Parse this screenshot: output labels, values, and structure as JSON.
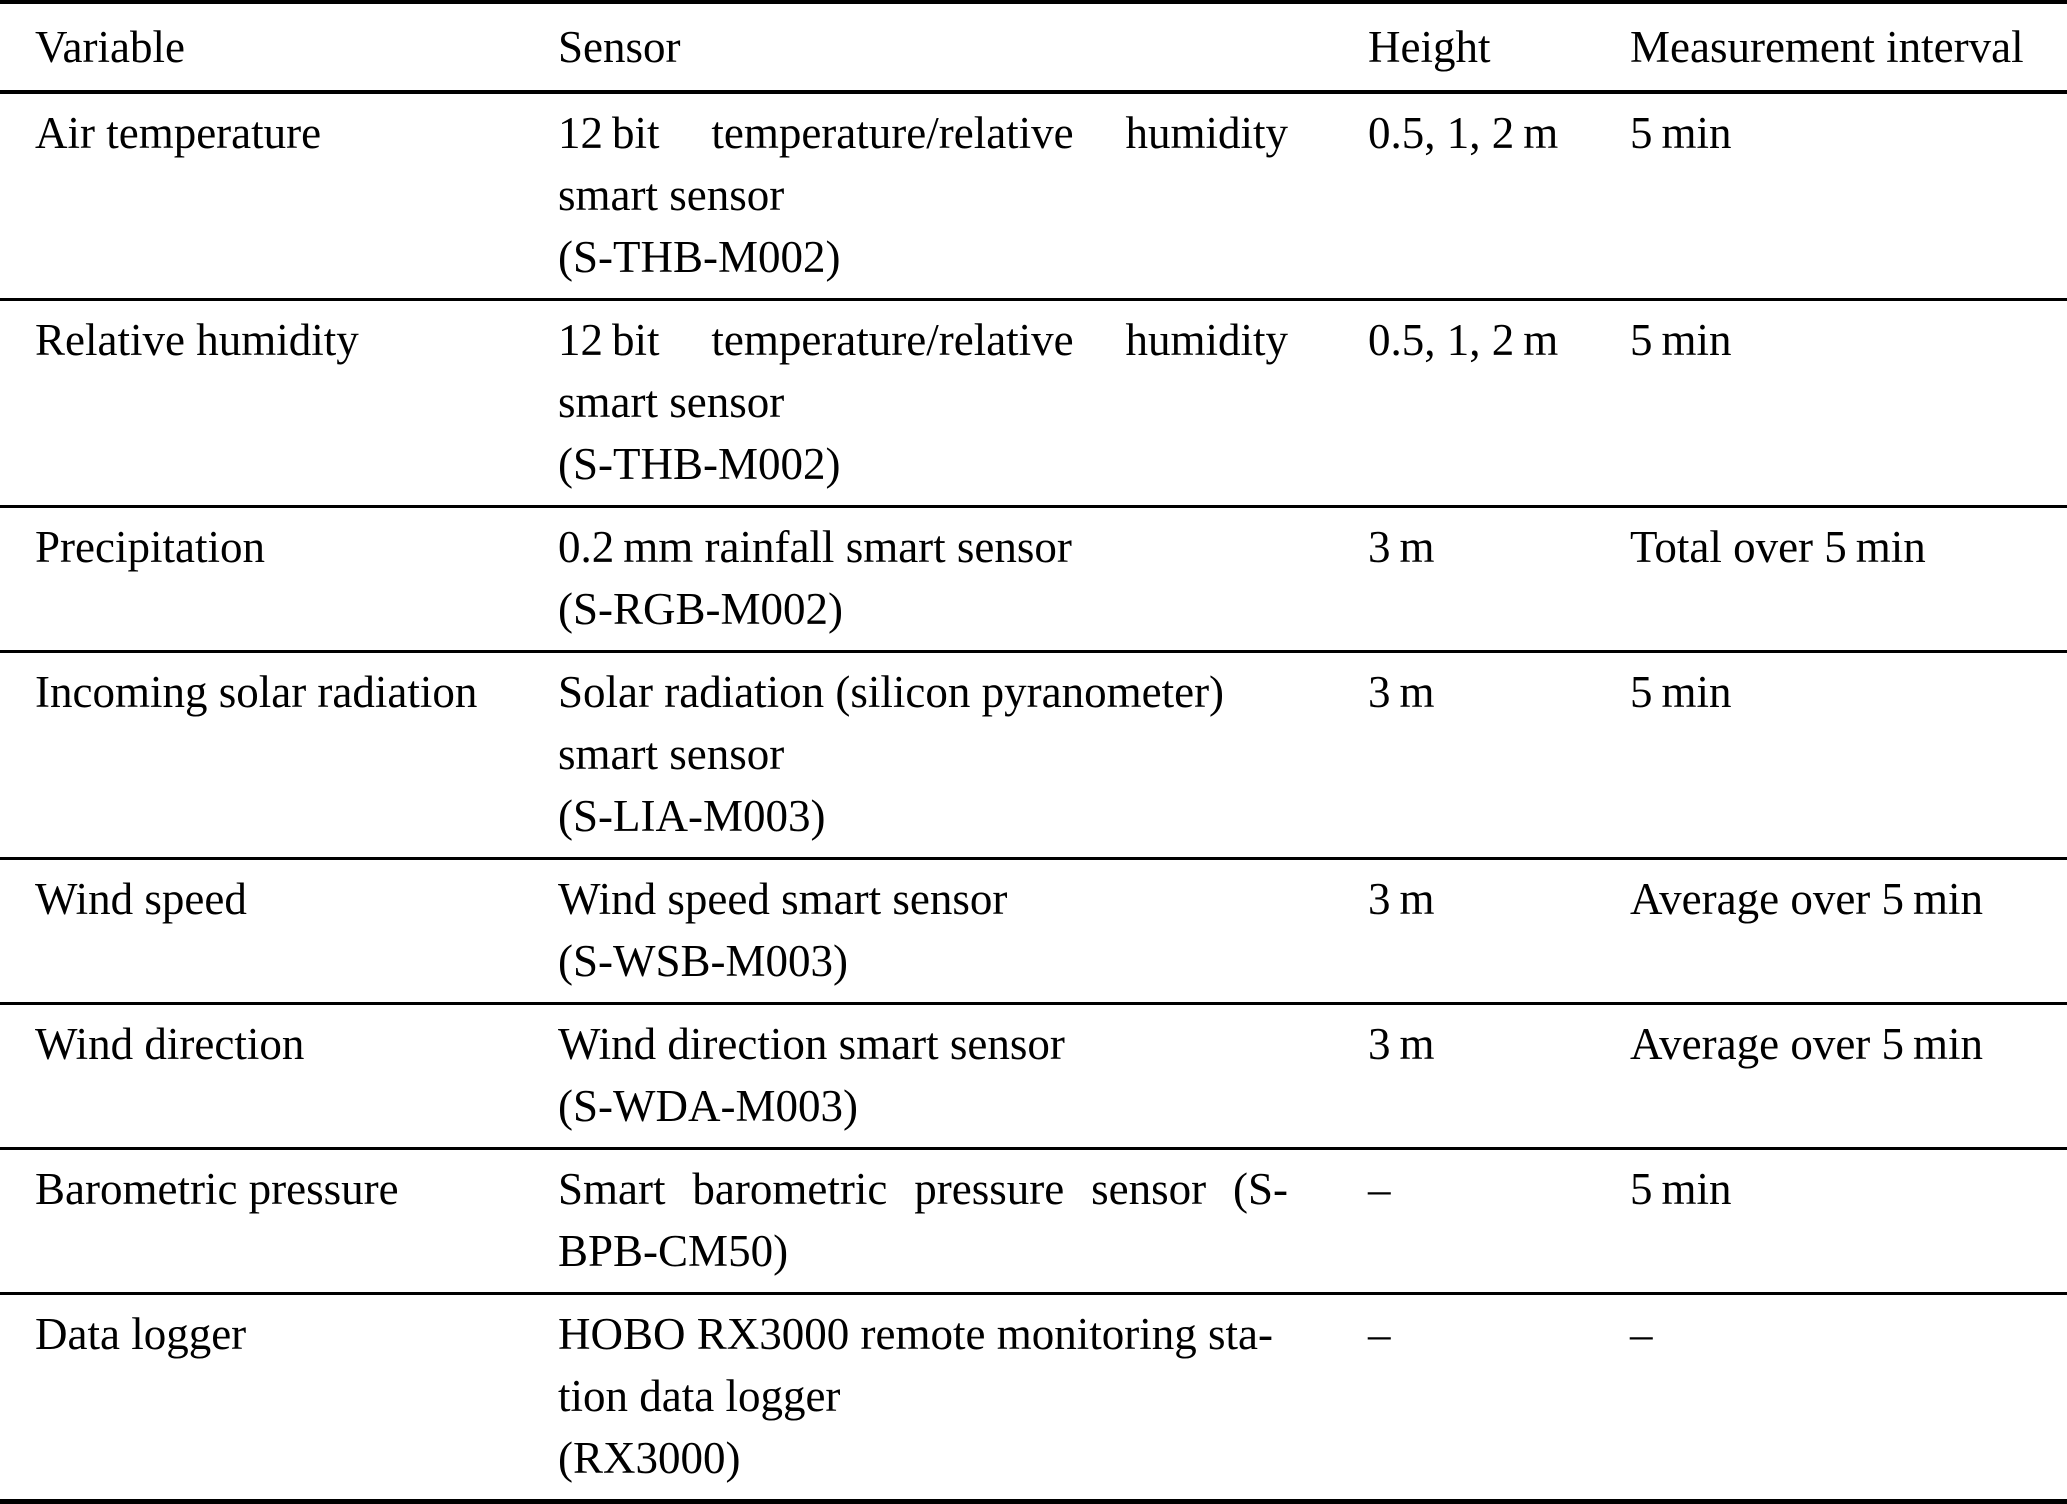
{
  "table": {
    "columns": [
      "Variable",
      "Sensor",
      "Height",
      "Measurement interval"
    ],
    "rows": [
      {
        "variable": "Air temperature",
        "sensor_lines": [
          {
            "text": "12 bit temperature/relative humidity",
            "justify": true
          },
          {
            "text": "smart sensor",
            "justify": false
          },
          {
            "text": "(S-THB-M002)",
            "justify": false
          }
        ],
        "height": "0.5, 1, 2 m",
        "interval": "5 min"
      },
      {
        "variable": "Relative humidity",
        "sensor_lines": [
          {
            "text": "12 bit temperature/relative humidity",
            "justify": true
          },
          {
            "text": "smart sensor",
            "justify": false
          },
          {
            "text": "(S-THB-M002)",
            "justify": false
          }
        ],
        "height": "0.5, 1, 2 m",
        "interval": "5 min"
      },
      {
        "variable": "Precipitation",
        "sensor_lines": [
          {
            "text": "0.2 mm rainfall smart sensor",
            "justify": false
          },
          {
            "text": "(S-RGB-M002)",
            "justify": false
          }
        ],
        "height": "3 m",
        "interval": "Total over 5 min"
      },
      {
        "variable": "Incoming solar radiation",
        "sensor_lines": [
          {
            "text": "Solar radiation (silicon pyranometer)",
            "justify": false
          },
          {
            "text": "smart sensor",
            "justify": false
          },
          {
            "text": "(S-LIA-M003)",
            "justify": false
          }
        ],
        "height": "3 m",
        "interval": "5 min"
      },
      {
        "variable": "Wind speed",
        "sensor_lines": [
          {
            "text": "Wind speed smart sensor",
            "justify": false
          },
          {
            "text": "(S-WSB-M003)",
            "justify": false
          }
        ],
        "height": "3 m",
        "interval": "Average over 5 min"
      },
      {
        "variable": "Wind direction",
        "sensor_lines": [
          {
            "text": "Wind direction smart sensor",
            "justify": false
          },
          {
            "text": "(S-WDA-M003)",
            "justify": false
          }
        ],
        "height": "3 m",
        "interval": "Average over 5 min"
      },
      {
        "variable": "Barometric pressure",
        "sensor_lines": [
          {
            "text": "Smart barometric pressure sensor (S-",
            "justify": true
          },
          {
            "text": "BPB-CM50)",
            "justify": false
          }
        ],
        "height": "–",
        "interval": "5 min"
      },
      {
        "variable": "Data logger",
        "sensor_lines": [
          {
            "text": "HOBO RX3000 remote monitoring sta-",
            "justify": false
          },
          {
            "text": "tion data logger",
            "justify": false
          },
          {
            "text": "(RX3000)",
            "justify": false
          }
        ],
        "height": "–",
        "interval": "–"
      }
    ]
  }
}
